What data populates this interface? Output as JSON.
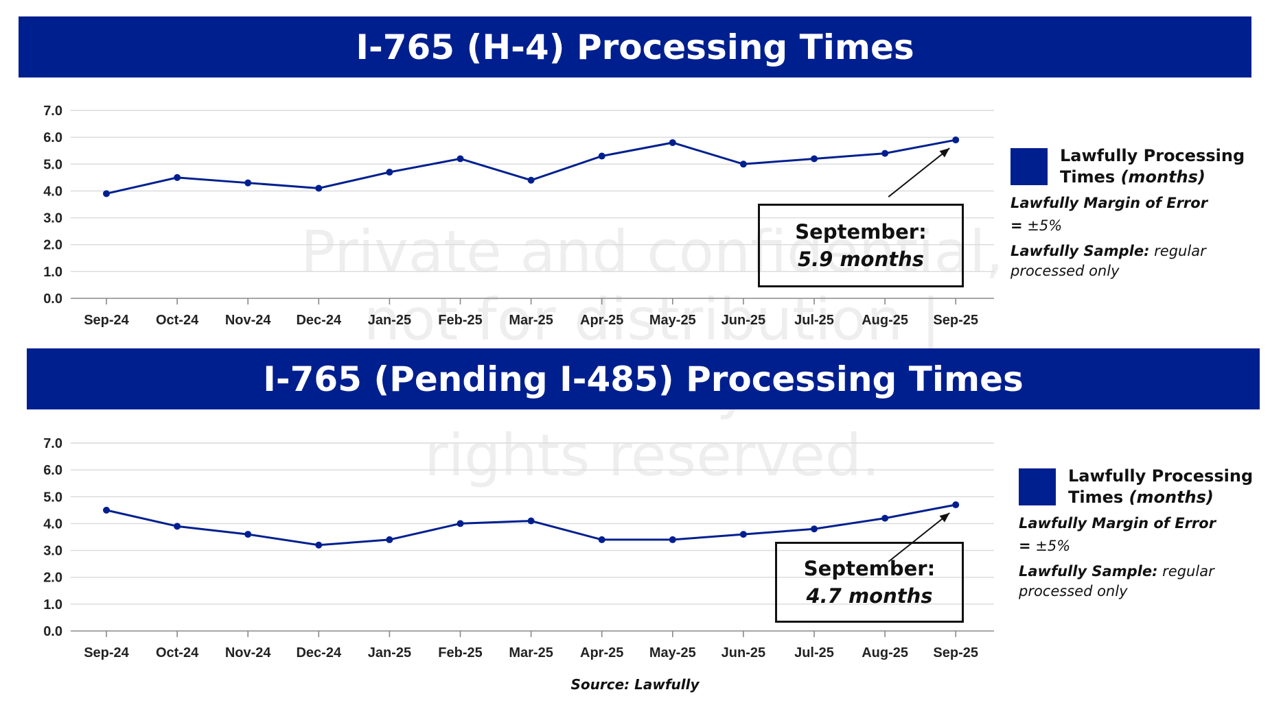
{
  "watermark": [
    "Private and confidential,",
    "not for distribution |",
    "©2025 Lawfully Data. All",
    "rights reserved."
  ],
  "source": "Source: Lawfully",
  "legend": {
    "series_label": "Lawfully Processing Times",
    "series_label_main": "Lawfully Processing",
    "series_label_line2_prefix": "Times",
    "series_label_unit": "(months)",
    "margin_bold": "Lawfully Margin of Error =",
    "margin_value": "±5%",
    "sample_bold": "Lawfully Sample:",
    "sample_text": "regular processed only",
    "swatch_color": "#001f8f"
  },
  "colors": {
    "banner": "#001f8f",
    "line": "#001f8f"
  },
  "charts": [
    {
      "title": "I-765 (H-4) Processing Times",
      "callout_title": "September:",
      "callout_value": "5.9 months"
    },
    {
      "title": "I-765 (Pending I-485) Processing Times",
      "callout_title": "September:",
      "callout_value": "4.7 months"
    }
  ],
  "chart_data": [
    {
      "type": "line",
      "title": "I-765 (H-4) Processing Times",
      "categories": [
        "Sep-24",
        "Oct-24",
        "Nov-24",
        "Dec-24",
        "Jan-25",
        "Feb-25",
        "Mar-25",
        "Apr-25",
        "May-25",
        "Jun-25",
        "Jul-25",
        "Aug-25",
        "Sep-25"
      ],
      "series": [
        {
          "name": "Lawfully Processing Times (months)",
          "values": [
            3.9,
            4.5,
            4.3,
            4.1,
            4.7,
            5.2,
            4.4,
            5.3,
            5.8,
            5.0,
            5.2,
            5.4,
            5.9
          ]
        }
      ],
      "ylim": [
        0,
        7
      ],
      "yticks": [
        "0.0",
        "1.0",
        "2.0",
        "3.0",
        "4.0",
        "5.0",
        "6.0",
        "7.0"
      ],
      "grid": true,
      "legend": "right"
    },
    {
      "type": "line",
      "title": "I-765 (Pending I-485) Processing Times",
      "categories": [
        "Sep-24",
        "Oct-24",
        "Nov-24",
        "Dec-24",
        "Jan-25",
        "Feb-25",
        "Mar-25",
        "Apr-25",
        "May-25",
        "Jun-25",
        "Jul-25",
        "Aug-25",
        "Sep-25"
      ],
      "series": [
        {
          "name": "Lawfully Processing Times (months)",
          "values": [
            4.5,
            3.9,
            3.6,
            3.2,
            3.4,
            4.0,
            4.1,
            3.4,
            3.4,
            3.6,
            3.8,
            4.2,
            4.7
          ]
        }
      ],
      "ylim": [
        0,
        7
      ],
      "yticks": [
        "0.0",
        "1.0",
        "2.0",
        "3.0",
        "4.0",
        "5.0",
        "6.0",
        "7.0"
      ],
      "grid": true,
      "legend": "right"
    }
  ]
}
